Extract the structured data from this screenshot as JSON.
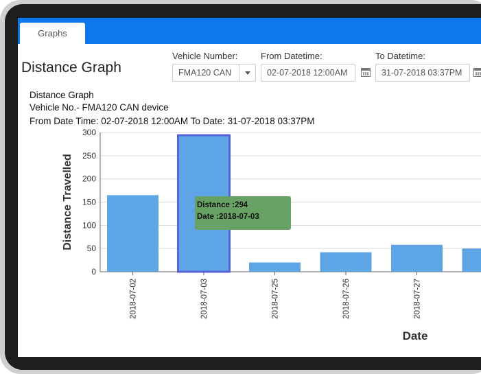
{
  "tabs": [
    "Graphs"
  ],
  "page_title": "Distance Graph",
  "filters": {
    "vehicle_label": "Vehicle Number:",
    "vehicle_value": "FMA120 CAN",
    "from_label": "From Datetime:",
    "from_value": "02-07-2018 12:00AM",
    "to_label": "To Datetime:",
    "to_value": "31-07-2018 03:37PM"
  },
  "info": {
    "title": "Distance Graph",
    "vehicle": "Vehicle No.- FMA120 CAN device",
    "range": "From Date Time: 02-07-2018 12:00AM To Date: 31-07-2018 03:37PM"
  },
  "tooltip": {
    "distance": "Distance :294",
    "date": "Date :2018-07-03",
    "color": "#67a163"
  },
  "chart_data": {
    "type": "bar",
    "xlabel": "Date",
    "ylabel": "Distance Travelled",
    "ylim": [
      0,
      300
    ],
    "yticks": [
      0,
      50,
      100,
      150,
      200,
      250,
      300
    ],
    "categories": [
      "2018-07-02",
      "2018-07-03",
      "2018-07-25",
      "2018-07-26",
      "2018-07-27",
      ""
    ],
    "values": [
      165,
      294,
      20,
      42,
      58,
      50
    ],
    "bar_color": "#5ea5e6",
    "highlight_border": "#5a62d8",
    "grid": true
  }
}
